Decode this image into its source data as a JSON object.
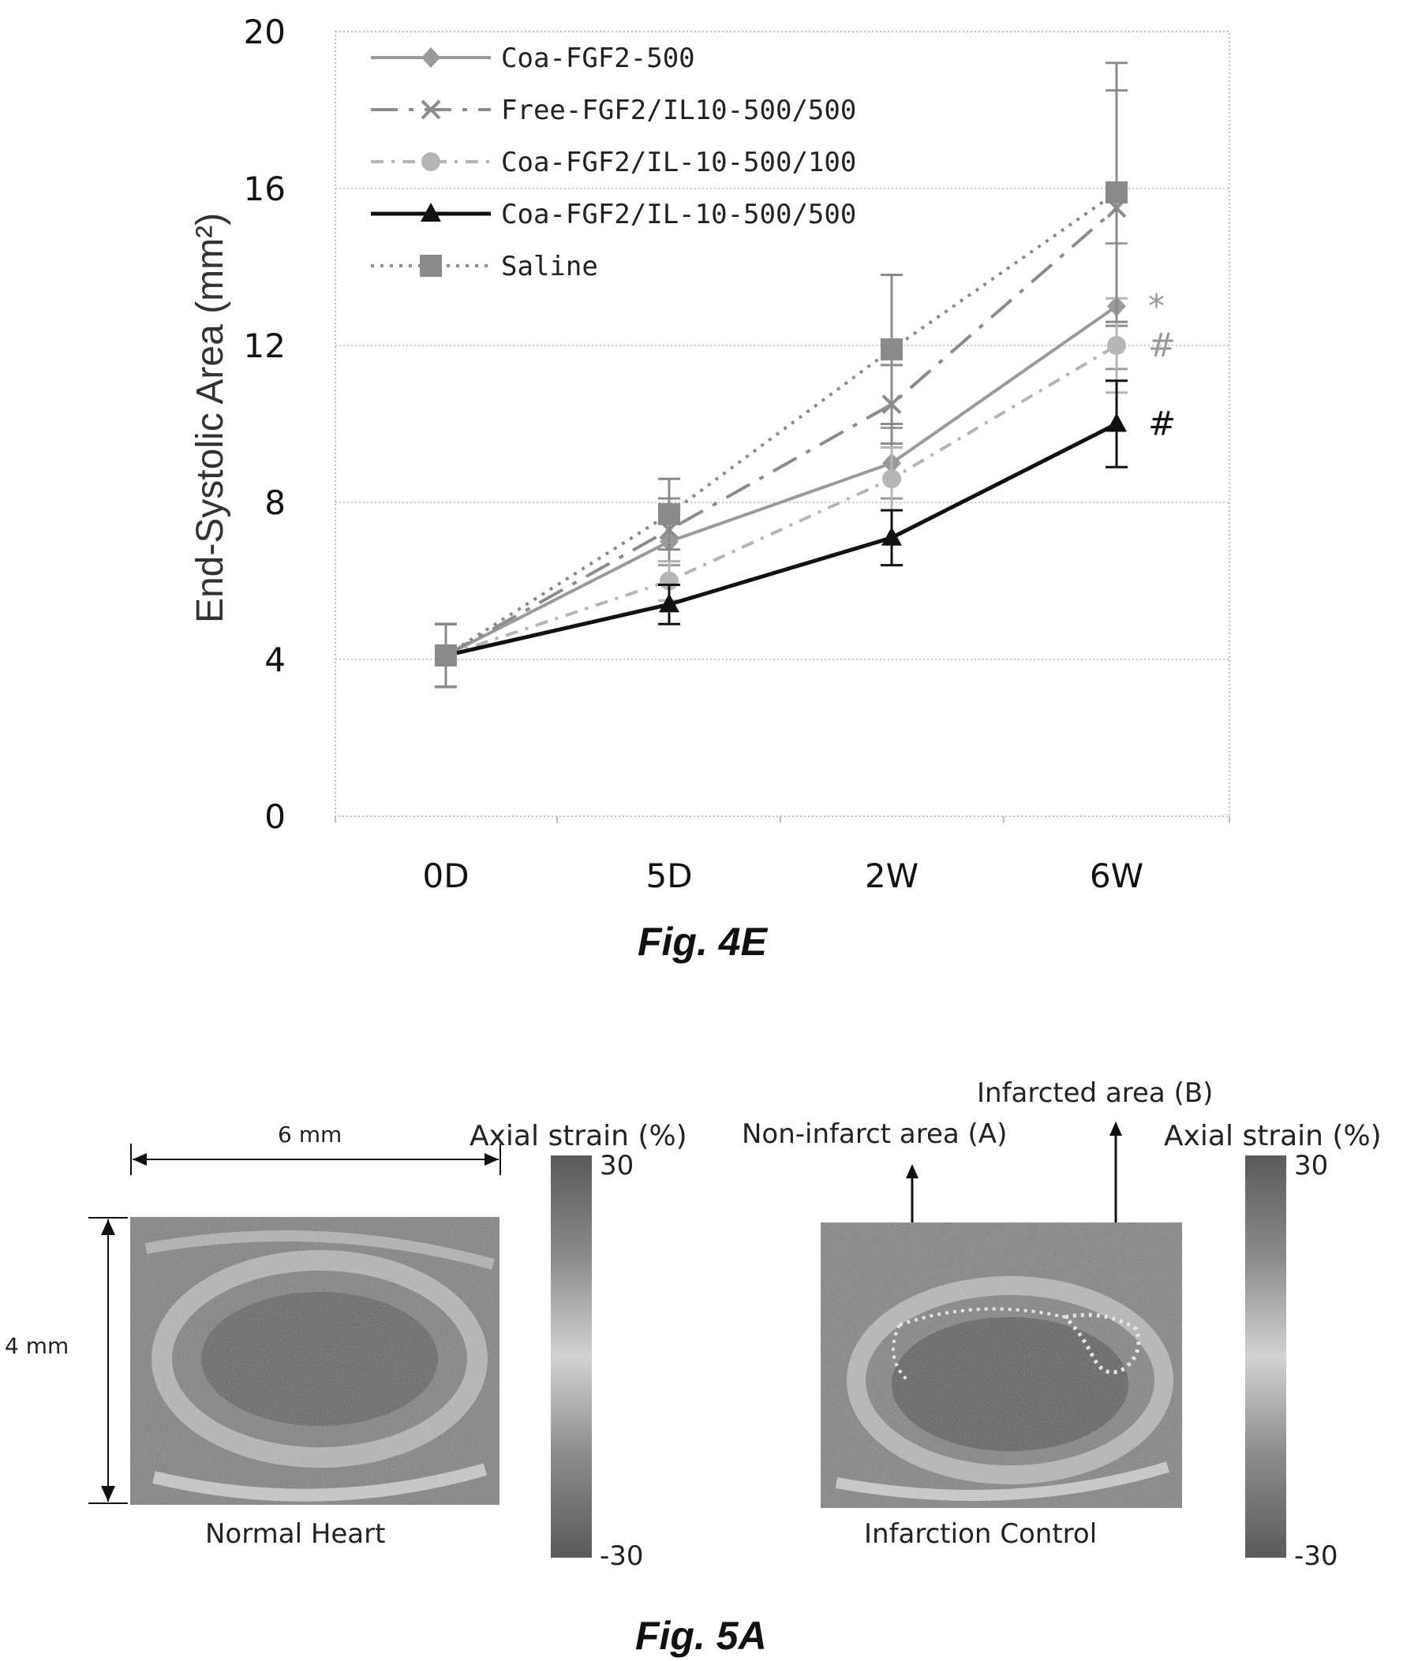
{
  "chart_data": {
    "type": "line",
    "categories": [
      "0D",
      "5D",
      "2W",
      "6W"
    ],
    "ylabel": "End-Systolic Area (mm²)",
    "ylim": [
      0,
      20
    ],
    "yticks": [
      "0",
      "4",
      "8",
      "12",
      "16",
      "20"
    ],
    "grid": true,
    "legend_position": "top-left",
    "series": [
      {
        "name": "Coa-FGF2-500",
        "values": [
          4.1,
          7.0,
          9.0,
          13.0
        ],
        "errors": [
          0.8,
          0.6,
          0.9,
          1.6
        ],
        "color": "#9a9a9a",
        "dash": "solid",
        "marker": "diamond",
        "annotation": "*"
      },
      {
        "name": "Free-FGF2/IL10-500/500",
        "values": [
          4.1,
          7.3,
          10.5,
          15.5
        ],
        "errors": [
          0.8,
          0.8,
          1.0,
          3.0
        ],
        "color": "#8c8c8c",
        "dash": "longdash",
        "marker": "x",
        "annotation": ""
      },
      {
        "name": "Coa-FGF2/IL-10-500/100",
        "values": [
          4.1,
          6.0,
          8.6,
          12.0
        ],
        "errors": [
          0.8,
          0.5,
          0.8,
          1.2
        ],
        "color": "#b5b5b5",
        "dash": "dashdot",
        "marker": "circle",
        "annotation": "#"
      },
      {
        "name": "Coa-FGF2/IL-10-500/500",
        "values": [
          4.1,
          5.4,
          7.1,
          10.0
        ],
        "errors": [
          0.8,
          0.5,
          0.7,
          1.1
        ],
        "color": "#111111",
        "dash": "solid",
        "marker": "triangle",
        "annotation": "#"
      },
      {
        "name": "Saline",
        "values": [
          4.1,
          7.7,
          11.9,
          15.9
        ],
        "errors": [
          0.8,
          0.9,
          1.9,
          3.3
        ],
        "color": "#8a8a8a",
        "dash": "dotted",
        "marker": "square",
        "annotation": ""
      }
    ]
  },
  "figure_4e": {
    "caption": "Fig. 4E"
  },
  "figure_5a": {
    "caption": "Fig. 5A",
    "left_panel": {
      "title": "Normal Heart",
      "width_label": "6 mm",
      "height_label": "4 mm",
      "colorbar_title": "Axial strain (%)",
      "colorbar_max": "30",
      "colorbar_min": "-30"
    },
    "right_panel": {
      "title": "Infarction Control",
      "annotation_a": "Non-infarct area (A)",
      "annotation_b": "Infarcted area (B)",
      "colorbar_title": "Axial strain (%)",
      "colorbar_max": "30",
      "colorbar_min": "-30"
    }
  }
}
